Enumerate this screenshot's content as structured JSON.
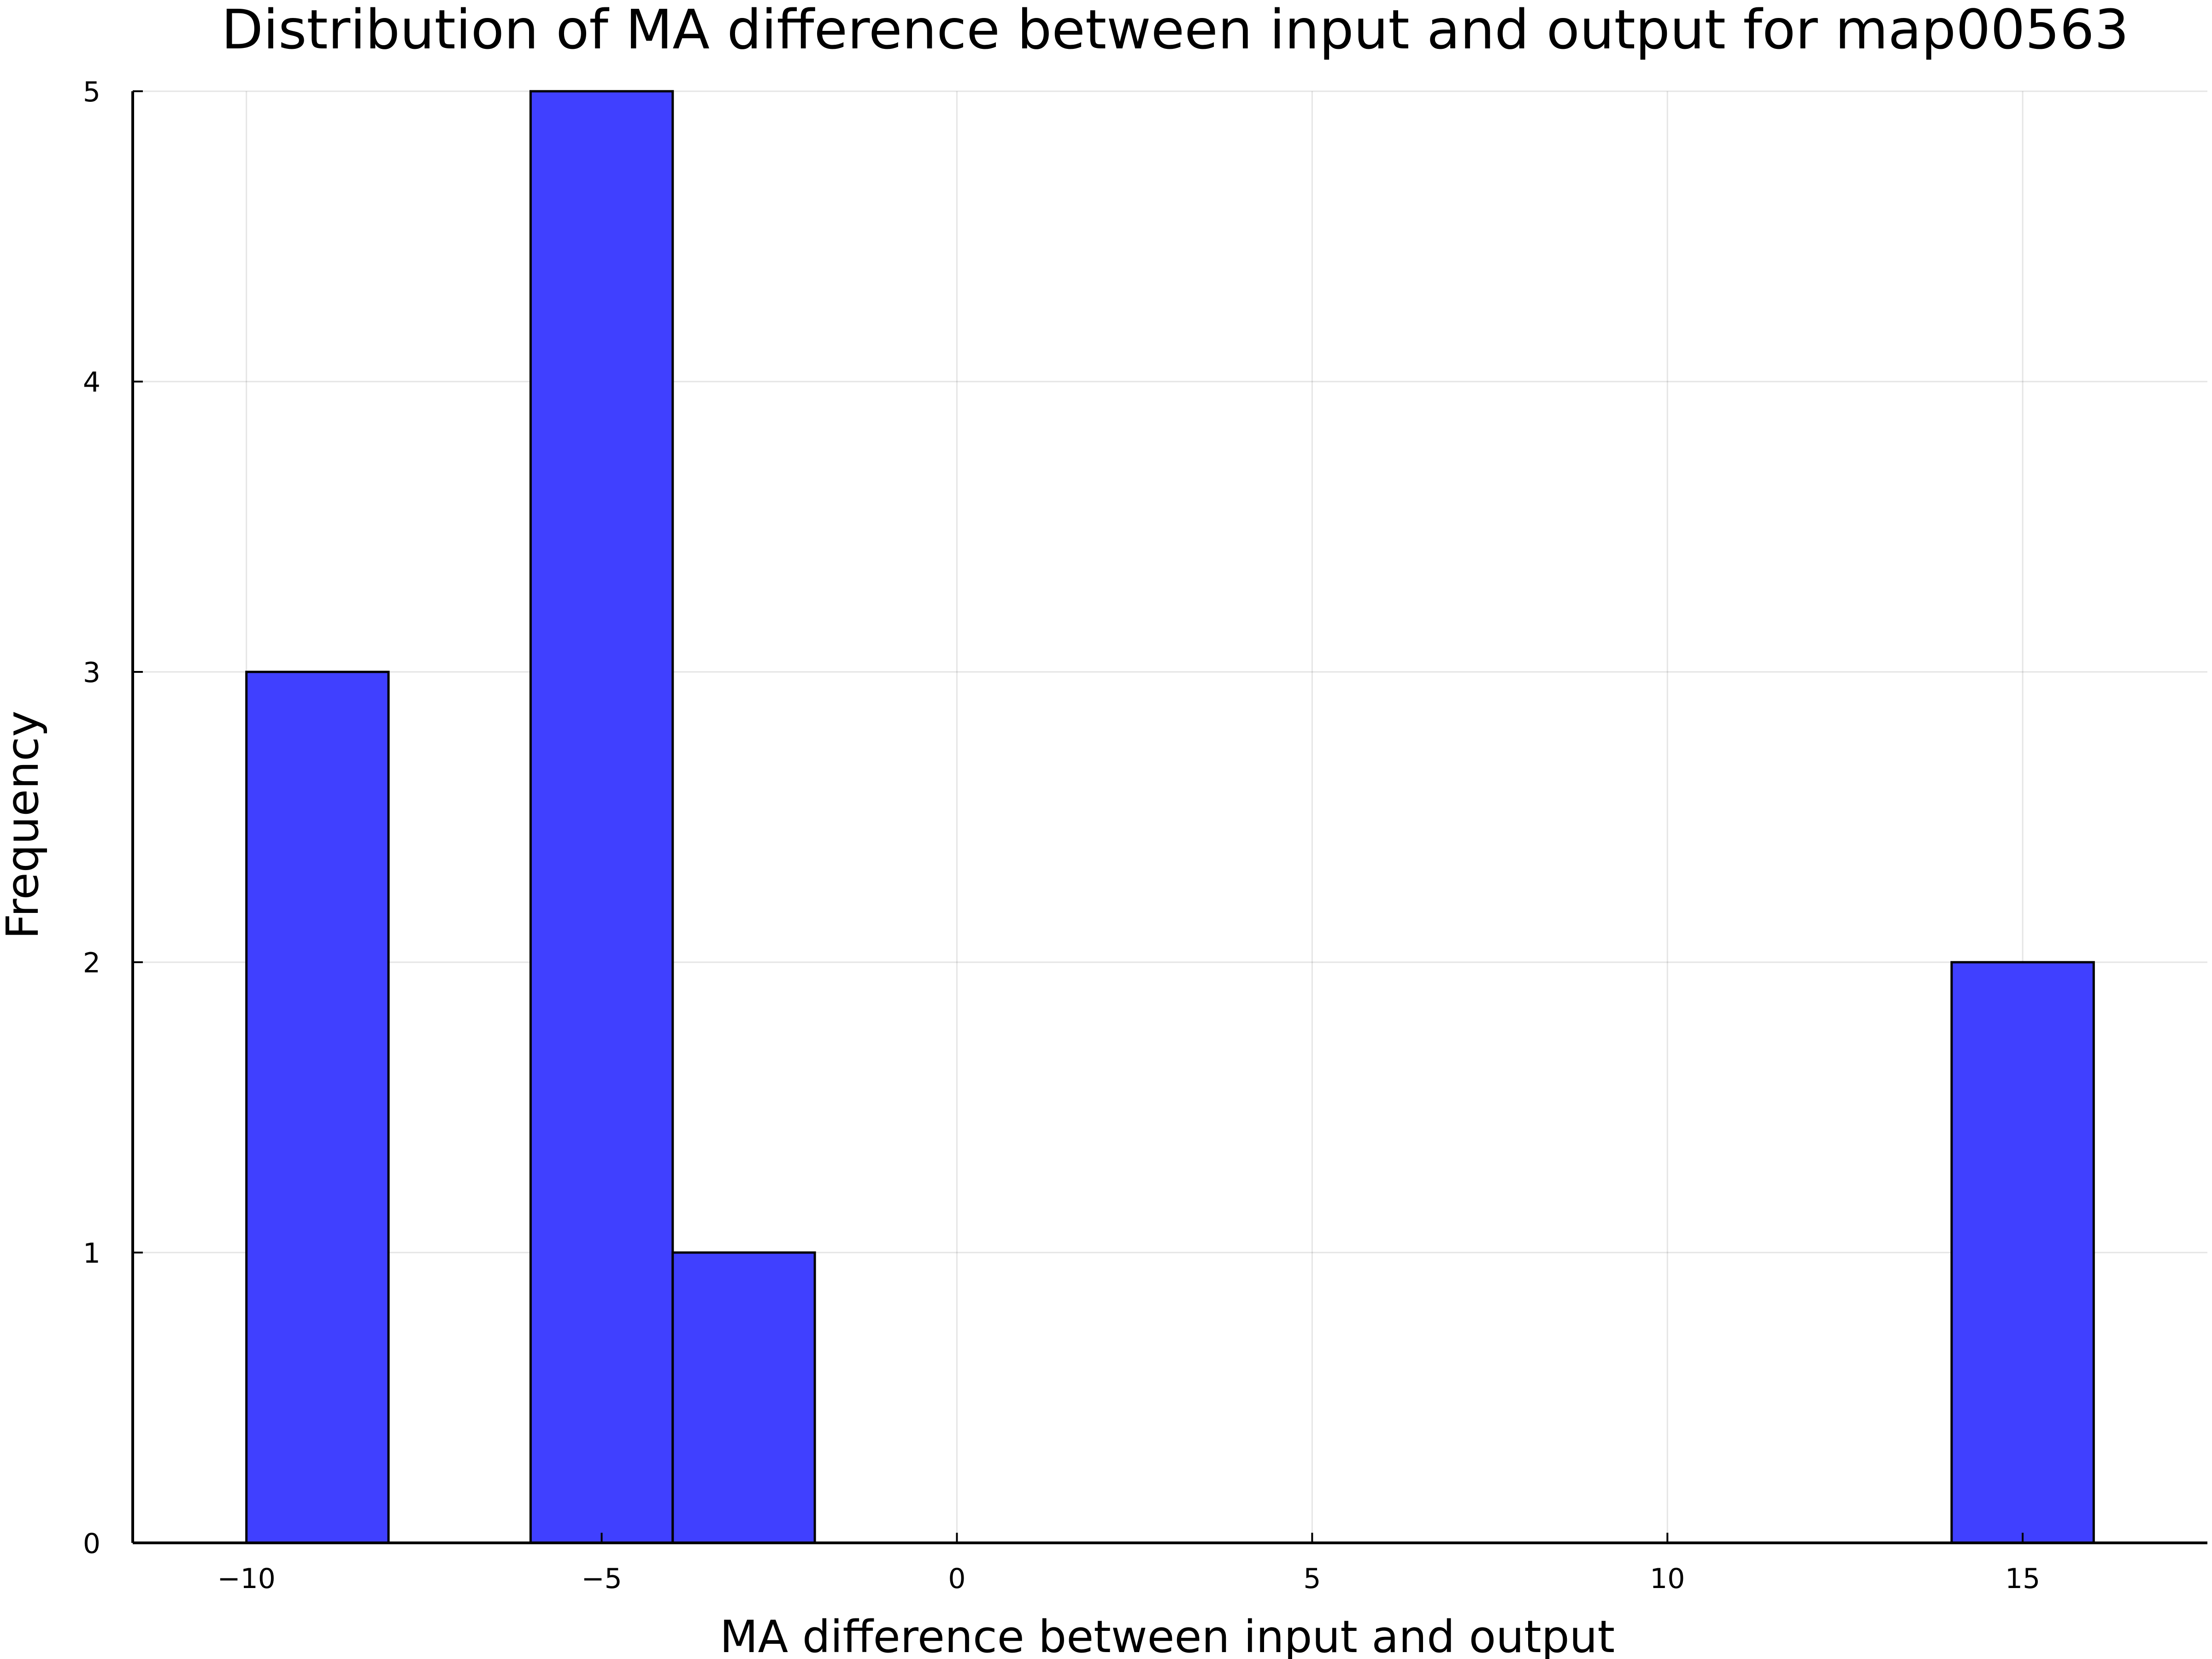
{
  "chart_data": {
    "type": "bar",
    "title": "Distribution of MA difference between input and output for map00563",
    "xlabel": "MA difference between input and output",
    "ylabel": "Frequency",
    "xlim": [
      -11.6,
      17.6
    ],
    "ylim": [
      0,
      5
    ],
    "x_ticks": [
      -10,
      -5,
      0,
      5,
      10,
      15
    ],
    "x_tick_labels": [
      "−10",
      "−5",
      "0",
      "5",
      "10",
      "15"
    ],
    "y_ticks": [
      0,
      1,
      2,
      3,
      4,
      5
    ],
    "y_tick_labels": [
      "0",
      "1",
      "2",
      "3",
      "4",
      "5"
    ],
    "grid": true,
    "legend": "none",
    "bar_color": "#4040ff",
    "bins": [
      {
        "start": -10,
        "end": -8,
        "count": 3
      },
      {
        "start": -8,
        "end": -6,
        "count": 0
      },
      {
        "start": -6,
        "end": -4,
        "count": 5
      },
      {
        "start": -4,
        "end": -2,
        "count": 1
      },
      {
        "start": -2,
        "end": 0,
        "count": 0
      },
      {
        "start": 0,
        "end": 2,
        "count": 0
      },
      {
        "start": 2,
        "end": 4,
        "count": 0
      },
      {
        "start": 4,
        "end": 6,
        "count": 0
      },
      {
        "start": 6,
        "end": 8,
        "count": 0
      },
      {
        "start": 8,
        "end": 10,
        "count": 0
      },
      {
        "start": 10,
        "end": 12,
        "count": 0
      },
      {
        "start": 12,
        "end": 14,
        "count": 0
      },
      {
        "start": 14,
        "end": 16,
        "count": 2
      }
    ]
  }
}
